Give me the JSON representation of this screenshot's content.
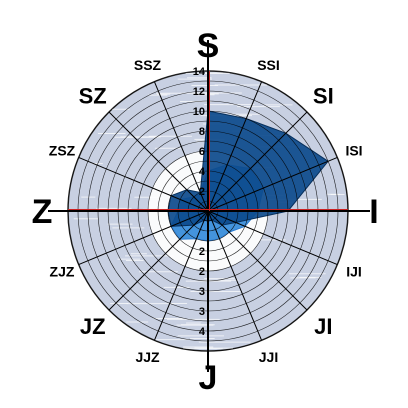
{
  "chart_data": {
    "type": "radar",
    "title": "",
    "rmax": 14,
    "grid": true,
    "directions": [
      "S",
      "SSI",
      "SI",
      "ISI",
      "I",
      "IJI",
      "JI",
      "JJI",
      "J",
      "JJZ",
      "JZ",
      "ZJZ",
      "Z",
      "ZSZ",
      "SZ",
      "SSZ"
    ],
    "upper_tick_labels": [
      "2",
      "4",
      "6",
      "8",
      "10",
      "12",
      "14"
    ],
    "lower_tick_labels": [
      "2",
      "2",
      "3",
      "3",
      "4"
    ],
    "series": [
      {
        "values": [
          4,
          5,
          6,
          6,
          5,
          4,
          3,
          3,
          3,
          3,
          4,
          4,
          3,
          3,
          2,
          2
        ],
        "color": "#3a8edb"
      },
      {
        "values": [
          10,
          10,
          11,
          13,
          8,
          3,
          2,
          1,
          1,
          1,
          2,
          4,
          4,
          4,
          3,
          2
        ],
        "color": "#0c4a8c"
      }
    ],
    "colors": {
      "ring_fill": "#c8d0e2",
      "ring_streak": "#ffffff",
      "ring_edge": "#333333",
      "marker": "#cc2222"
    }
  }
}
